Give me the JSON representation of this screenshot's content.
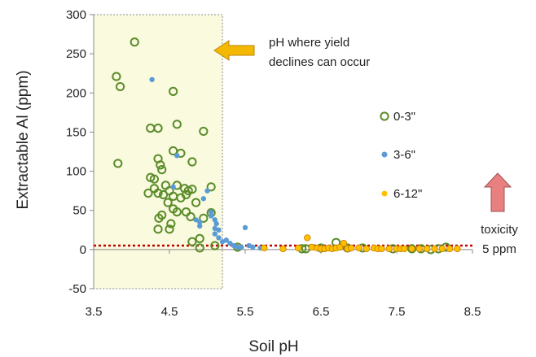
{
  "chart_data": {
    "type": "scatter",
    "title": "",
    "xlabel": "Soil pH",
    "ylabel": "Extractable Al (ppm)",
    "xlim": [
      3.5,
      8.5
    ],
    "ylim": [
      -50,
      300
    ],
    "x_ticks": [
      "3.5",
      "4.5",
      "5.5",
      "6.5",
      "7.5",
      "8.5"
    ],
    "y_ticks": [
      "-50",
      "0",
      "50",
      "100",
      "150",
      "200",
      "250",
      "300"
    ],
    "grid": false,
    "legend_position": "right",
    "shaded_region": {
      "x_from": 3.5,
      "x_to": 5.2,
      "color": "#fafadf",
      "border": "#888888"
    },
    "threshold_line": {
      "y": 5,
      "color": "#c00000"
    },
    "annotations": {
      "yield_text": [
        "pH where yield",
        "declines can occur"
      ],
      "toxicity_text": [
        "toxicity",
        "5 ppm"
      ]
    },
    "series": [
      {
        "name": "0-3\"",
        "marker": "hollow-circle",
        "color": "#5b8c2a",
        "points": [
          [
            4.04,
            265
          ],
          [
            3.8,
            221
          ],
          [
            3.85,
            208
          ],
          [
            4.55,
            202
          ],
          [
            3.82,
            110
          ],
          [
            4.25,
            155
          ],
          [
            4.35,
            155
          ],
          [
            4.6,
            160
          ],
          [
            4.95,
            151
          ],
          [
            4.55,
            126
          ],
          [
            4.65,
            123
          ],
          [
            4.8,
            112
          ],
          [
            4.35,
            116
          ],
          [
            4.38,
            108
          ],
          [
            4.4,
            102
          ],
          [
            4.25,
            92
          ],
          [
            4.3,
            90
          ],
          [
            4.45,
            82
          ],
          [
            4.6,
            82
          ],
          [
            4.7,
            78
          ],
          [
            4.75,
            75
          ],
          [
            4.8,
            77
          ],
          [
            4.22,
            72
          ],
          [
            4.3,
            78
          ],
          [
            4.35,
            72
          ],
          [
            4.42,
            70
          ],
          [
            4.5,
            75
          ],
          [
            4.55,
            68
          ],
          [
            4.65,
            66
          ],
          [
            4.72,
            70
          ],
          [
            4.85,
            60
          ],
          [
            4.48,
            60
          ],
          [
            4.55,
            52
          ],
          [
            4.6,
            48
          ],
          [
            4.72,
            48
          ],
          [
            4.78,
            42
          ],
          [
            4.4,
            44
          ],
          [
            4.36,
            40
          ],
          [
            4.52,
            33
          ],
          [
            4.35,
            26
          ],
          [
            4.5,
            26
          ],
          [
            4.8,
            10
          ],
          [
            4.9,
            14
          ],
          [
            4.95,
            40
          ],
          [
            5.05,
            80
          ],
          [
            5.05,
            47
          ],
          [
            4.9,
            2
          ],
          [
            5.1,
            5
          ],
          [
            5.4,
            3
          ],
          [
            6.25,
            1
          ],
          [
            6.3,
            1
          ],
          [
            6.5,
            2
          ],
          [
            6.7,
            9
          ],
          [
            6.85,
            2
          ],
          [
            7.05,
            2
          ],
          [
            7.45,
            1
          ],
          [
            7.7,
            1
          ],
          [
            7.82,
            1
          ],
          [
            7.95,
            0
          ],
          [
            8.05,
            1
          ],
          [
            8.15,
            3
          ]
        ]
      },
      {
        "name": "3-6\"",
        "marker": "filled-circle",
        "color": "#5b9bd5",
        "points": [
          [
            4.27,
            217
          ],
          [
            4.6,
            120
          ],
          [
            4.55,
            80
          ],
          [
            4.85,
            38
          ],
          [
            4.9,
            35
          ],
          [
            4.9,
            30
          ],
          [
            4.95,
            65
          ],
          [
            5.0,
            75
          ],
          [
            5.05,
            48
          ],
          [
            5.05,
            43
          ],
          [
            5.1,
            38
          ],
          [
            5.1,
            27
          ],
          [
            5.1,
            20
          ],
          [
            5.12,
            33
          ],
          [
            5.15,
            25
          ],
          [
            5.15,
            15
          ],
          [
            5.2,
            10
          ],
          [
            5.25,
            12
          ],
          [
            5.3,
            8
          ],
          [
            5.35,
            5
          ],
          [
            5.4,
            3
          ],
          [
            5.45,
            3
          ],
          [
            5.5,
            28
          ],
          [
            5.55,
            5
          ],
          [
            5.6,
            3
          ],
          [
            5.7,
            2
          ],
          [
            7.9,
            1
          ],
          [
            8.0,
            1
          ]
        ]
      },
      {
        "name": "6-12\"",
        "marker": "filled-circle",
        "color": "#ffc000",
        "points": [
          [
            5.75,
            2
          ],
          [
            6.0,
            1
          ],
          [
            6.2,
            2
          ],
          [
            6.32,
            15
          ],
          [
            6.38,
            3
          ],
          [
            6.45,
            2
          ],
          [
            6.5,
            1
          ],
          [
            6.55,
            1
          ],
          [
            6.6,
            2
          ],
          [
            6.65,
            1
          ],
          [
            6.7,
            2
          ],
          [
            6.75,
            3
          ],
          [
            6.8,
            8
          ],
          [
            6.85,
            1
          ],
          [
            6.9,
            2
          ],
          [
            7.0,
            2
          ],
          [
            7.1,
            1
          ],
          [
            7.2,
            2
          ],
          [
            7.25,
            1
          ],
          [
            7.3,
            1
          ],
          [
            7.4,
            1
          ],
          [
            7.5,
            1
          ],
          [
            7.55,
            1
          ],
          [
            7.6,
            1
          ],
          [
            7.7,
            1
          ],
          [
            7.8,
            1
          ],
          [
            7.9,
            1
          ],
          [
            8.0,
            1
          ],
          [
            8.1,
            1
          ],
          [
            8.2,
            1
          ],
          [
            8.3,
            1
          ]
        ]
      }
    ]
  }
}
